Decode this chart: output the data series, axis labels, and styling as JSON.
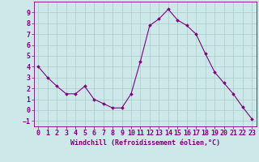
{
  "x": [
    0,
    1,
    2,
    3,
    4,
    5,
    6,
    7,
    8,
    9,
    10,
    11,
    12,
    13,
    14,
    15,
    16,
    17,
    18,
    19,
    20,
    21,
    22,
    23
  ],
  "y": [
    4.0,
    3.0,
    2.2,
    1.5,
    1.5,
    2.2,
    1.0,
    0.6,
    0.2,
    0.2,
    1.5,
    4.5,
    7.8,
    8.4,
    9.3,
    8.3,
    7.8,
    7.0,
    5.2,
    3.5,
    2.5,
    1.5,
    0.3,
    -0.8
  ],
  "line_color": "#800080",
  "marker": "D",
  "marker_size": 1.8,
  "linewidth": 0.8,
  "background_color": "#cce8e8",
  "grid_color": "#aacccc",
  "xlabel": "Windchill (Refroidissement éolien,°C)",
  "xlabel_fontsize": 6,
  "tick_fontsize": 6,
  "xlim": [
    -0.5,
    23.5
  ],
  "ylim": [
    -1.5,
    10.0
  ],
  "yticks": [
    -1,
    0,
    1,
    2,
    3,
    4,
    5,
    6,
    7,
    8,
    9
  ],
  "xticks": [
    0,
    1,
    2,
    3,
    4,
    5,
    6,
    7,
    8,
    9,
    10,
    11,
    12,
    13,
    14,
    15,
    16,
    17,
    18,
    19,
    20,
    21,
    22,
    23
  ]
}
